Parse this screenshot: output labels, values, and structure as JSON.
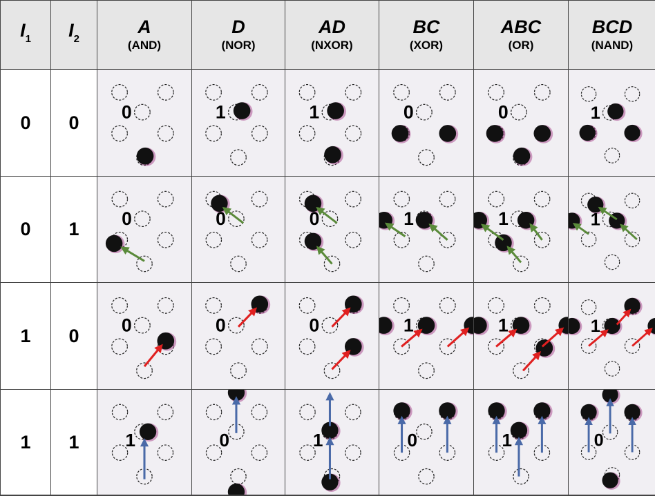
{
  "table": {
    "header": [
      {
        "label": "I",
        "sub": "1"
      },
      {
        "label": "I",
        "sub": "2"
      },
      {
        "label": "A",
        "gate": "(AND)"
      },
      {
        "label": "D",
        "gate": "(NOR)"
      },
      {
        "label": "AD",
        "gate": "(NXOR)"
      },
      {
        "label": "BC",
        "gate": "(XOR)"
      },
      {
        "label": "ABC",
        "gate": "(OR)"
      },
      {
        "label": "BCD",
        "gate": "(NAND)"
      }
    ],
    "rows": [
      {
        "inputs": [
          "0",
          "0"
        ],
        "outputs": [
          "0",
          "1",
          "1",
          "0",
          "0",
          "1"
        ]
      },
      {
        "inputs": [
          "0",
          "1"
        ],
        "outputs": [
          "0",
          "0",
          "0",
          "1",
          "1",
          "1"
        ]
      },
      {
        "inputs": [
          "1",
          "0"
        ],
        "outputs": [
          "0",
          "0",
          "0",
          "1",
          "1",
          "1"
        ]
      },
      {
        "inputs": [
          "1",
          "1"
        ],
        "outputs": [
          "1",
          "0",
          "1",
          "0",
          "1",
          "0"
        ]
      }
    ]
  }
}
